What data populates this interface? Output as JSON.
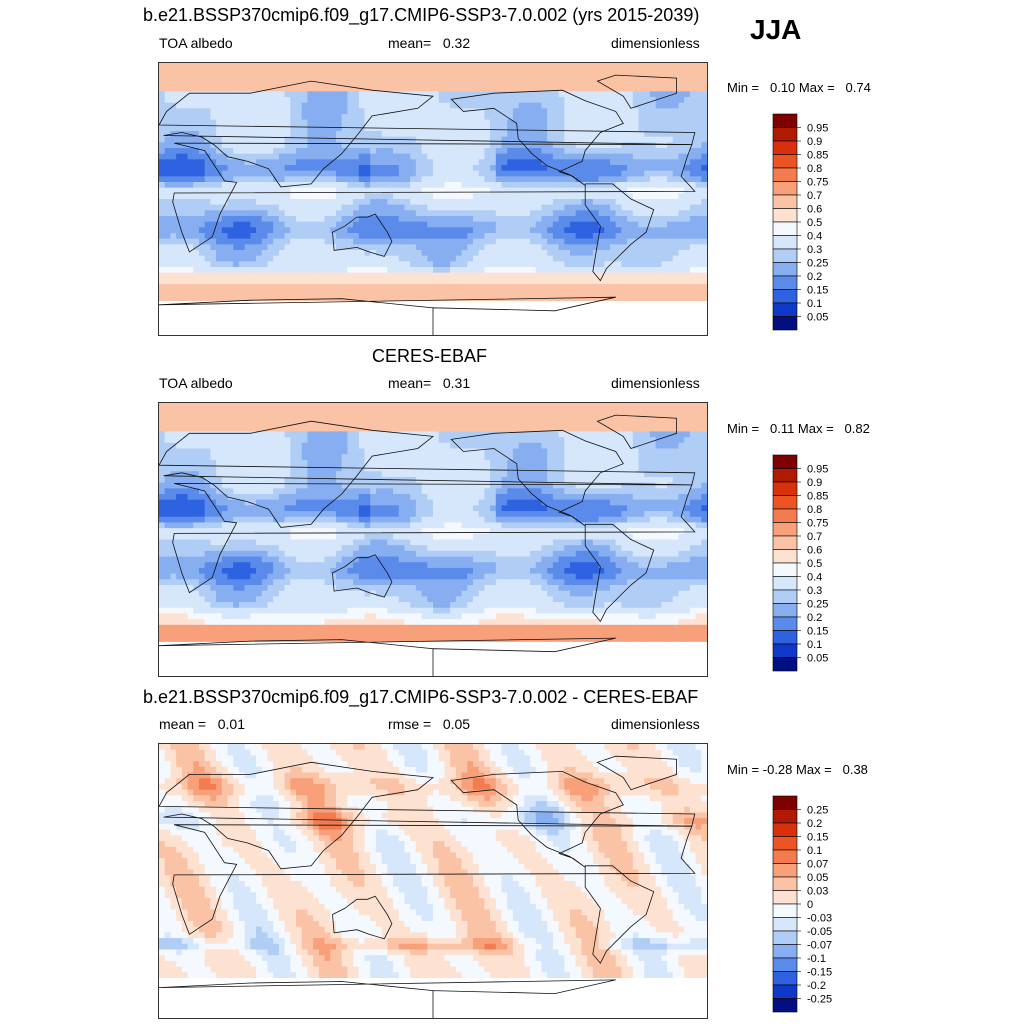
{
  "season": "JJA",
  "chart_data": [
    {
      "type": "heatmap",
      "title": "b.e21.BSSP370cmip6.f09_g17.CMIP6-SSP3-7.0.002 (yrs 2015-2039)",
      "left_label": "TOA albedo",
      "center_label": "mean=   0.32",
      "right_label": "dimensionless",
      "min_max": "Min =   0.10 Max =   0.74",
      "min": 0.1,
      "max": 0.74,
      "mean": 0.32,
      "levels": [
        "0.95",
        "0.9",
        "0.85",
        "0.8",
        "0.75",
        "0.7",
        "0.6",
        "0.5",
        "0.4",
        "0.3",
        "0.25",
        "0.2",
        "0.15",
        "0.1",
        "0.05"
      ],
      "colors": [
        "#7f0000",
        "#b01a00",
        "#d8300a",
        "#ec5424",
        "#f47a50",
        "#f8a07a",
        "#fbc3a6",
        "#fde2d2",
        "#f4f8ff",
        "#d6e6fb",
        "#b0cdf6",
        "#86aef0",
        "#5b8bea",
        "#2f62e0",
        "#1038c8",
        "#001080"
      ]
    },
    {
      "type": "heatmap",
      "title": "CERES-EBAF",
      "left_label": "TOA albedo",
      "center_label": "mean=   0.31",
      "right_label": "dimensionless",
      "min_max": "Min =   0.11 Max =   0.82",
      "min": 0.11,
      "max": 0.82,
      "mean": 0.31,
      "levels": [
        "0.95",
        "0.9",
        "0.85",
        "0.8",
        "0.75",
        "0.7",
        "0.6",
        "0.5",
        "0.4",
        "0.3",
        "0.25",
        "0.2",
        "0.15",
        "0.1",
        "0.05"
      ],
      "colors": [
        "#7f0000",
        "#b01a00",
        "#d8300a",
        "#ec5424",
        "#f47a50",
        "#f8a07a",
        "#fbc3a6",
        "#fde2d2",
        "#f4f8ff",
        "#d6e6fb",
        "#b0cdf6",
        "#86aef0",
        "#5b8bea",
        "#2f62e0",
        "#1038c8",
        "#001080"
      ]
    },
    {
      "type": "heatmap",
      "title": "b.e21.BSSP370cmip6.f09_g17.CMIP6-SSP3-7.0.002 - CERES-EBAF",
      "left_label": "mean =   0.01",
      "center_label": "rmse =   0.05",
      "right_label": "dimensionless",
      "min_max": "Min = -0.28 Max =   0.38",
      "min": -0.28,
      "max": 0.38,
      "mean": 0.01,
      "rmse": 0.05,
      "levels": [
        "0.25",
        "0.2",
        "0.15",
        "0.1",
        "0.07",
        "0.05",
        "0.03",
        "0",
        "-0.03",
        "-0.05",
        "-0.07",
        "-0.1",
        "-0.15",
        "-0.2",
        "-0.25"
      ],
      "colors": [
        "#7f0000",
        "#b01a00",
        "#d8300a",
        "#ec5424",
        "#f47a50",
        "#f8a07a",
        "#fbc3a6",
        "#fde2d2",
        "#f4f8ff",
        "#d6e6fb",
        "#b0cdf6",
        "#86aef0",
        "#5b8bea",
        "#2f62e0",
        "#1038c8",
        "#001080"
      ]
    }
  ]
}
